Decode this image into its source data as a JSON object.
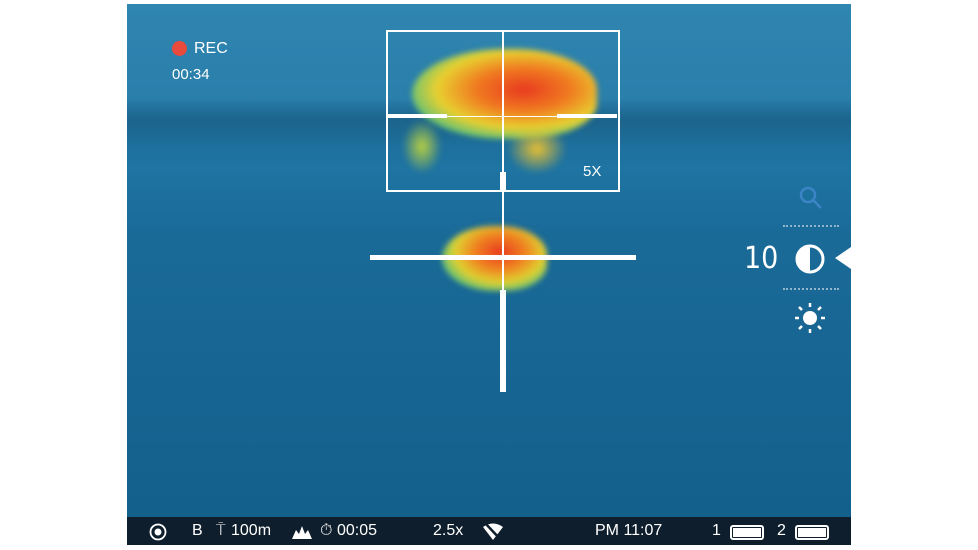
{
  "recording": {
    "label": "REC",
    "time": "00:34",
    "color": "#e84a3c"
  },
  "zoom_box": {
    "label": "5X"
  },
  "side_menu": {
    "value": "10",
    "items": [
      "search-icon",
      "contrast-icon",
      "brightness-icon"
    ],
    "selected": "contrast"
  },
  "status_bar": {
    "mode": "B",
    "distance": "100m",
    "timer": "00:05",
    "zoom": "2.5x",
    "clock": "PM 11:07",
    "battery1_label": "1",
    "battery2_label": "2",
    "battery1_level": 100,
    "battery2_level": 100
  }
}
